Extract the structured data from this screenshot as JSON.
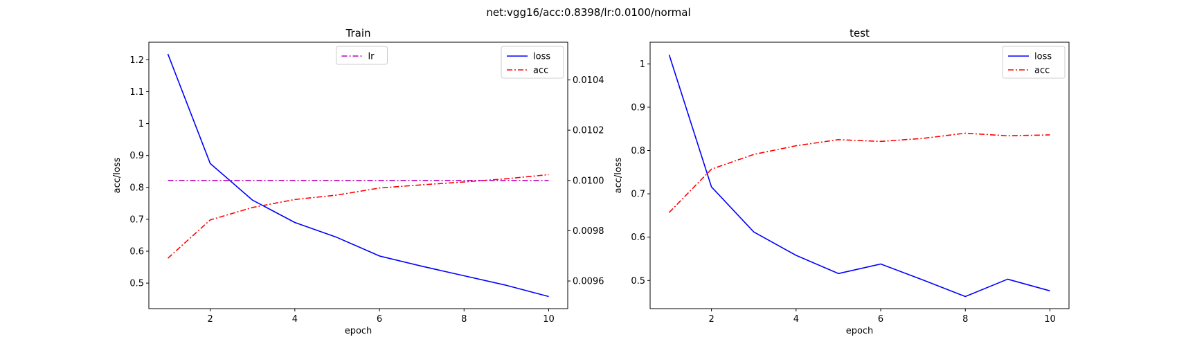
{
  "figure": {
    "suptitle": "net:vgg16/acc:0.8398/lr:0.0100/normal"
  },
  "chart_data": [
    {
      "type": "line",
      "title": "Train",
      "xlabel": "epoch",
      "ylabel": "acc/loss",
      "y2label": "",
      "x": [
        1,
        2,
        3,
        4,
        5,
        6,
        7,
        8,
        9,
        10
      ],
      "xlim": [
        0.55,
        10.45
      ],
      "ylim": [
        0.42,
        1.255
      ],
      "y2lim": [
        0.00949,
        0.01055
      ],
      "xticks": [
        2,
        4,
        6,
        8,
        10
      ],
      "yticks": [
        0.5,
        0.6,
        0.7,
        0.8,
        0.9,
        1.0,
        1.1,
        1.2
      ],
      "y2ticks": [
        0.0096,
        0.0098,
        0.01,
        0.0102,
        0.0104
      ],
      "y2tick_labels": [
        "0.0096",
        "0.0098",
        "0.0100",
        "0.0102",
        "0.0104"
      ],
      "series": [
        {
          "name": "loss",
          "axis": "left",
          "color": "#0000ff",
          "style": "solid",
          "values": [
            1.218,
            0.875,
            0.76,
            0.69,
            0.643,
            0.585,
            0.553,
            0.523,
            0.493,
            0.458
          ]
        },
        {
          "name": "acc",
          "axis": "left",
          "color": "#ff0000",
          "style": "dashdot",
          "values": [
            0.578,
            0.698,
            0.737,
            0.762,
            0.776,
            0.798,
            0.808,
            0.817,
            0.827,
            0.84
          ]
        },
        {
          "name": "lr",
          "axis": "right",
          "color": "#bf00bf",
          "style": "dashdot",
          "values": [
            0.01,
            0.01,
            0.01,
            0.01,
            0.01,
            0.01,
            0.01,
            0.01,
            0.01,
            0.01
          ]
        }
      ],
      "legends": [
        {
          "placement": "upper-right",
          "entries": [
            "loss",
            "acc"
          ]
        },
        {
          "placement": "upper-center",
          "entries": [
            "lr"
          ]
        }
      ]
    },
    {
      "type": "line",
      "title": "test",
      "xlabel": "epoch",
      "ylabel": "acc/loss",
      "x": [
        1,
        2,
        3,
        4,
        5,
        6,
        7,
        8,
        9,
        10
      ],
      "xlim": [
        0.55,
        10.45
      ],
      "ylim": [
        0.435,
        1.05
      ],
      "xticks": [
        2,
        4,
        6,
        8,
        10
      ],
      "yticks": [
        0.5,
        0.6,
        0.7,
        0.8,
        0.9,
        1.0
      ],
      "series": [
        {
          "name": "loss",
          "axis": "left",
          "color": "#0000ff",
          "style": "solid",
          "values": [
            1.021,
            0.716,
            0.612,
            0.558,
            0.516,
            0.538,
            0.501,
            0.463,
            0.503,
            0.476
          ]
        },
        {
          "name": "acc",
          "axis": "left",
          "color": "#ff0000",
          "style": "dashdot",
          "values": [
            0.657,
            0.757,
            0.791,
            0.811,
            0.825,
            0.821,
            0.828,
            0.84,
            0.834,
            0.836
          ]
        }
      ],
      "legends": [
        {
          "placement": "upper-right",
          "entries": [
            "loss",
            "acc"
          ]
        }
      ]
    }
  ]
}
